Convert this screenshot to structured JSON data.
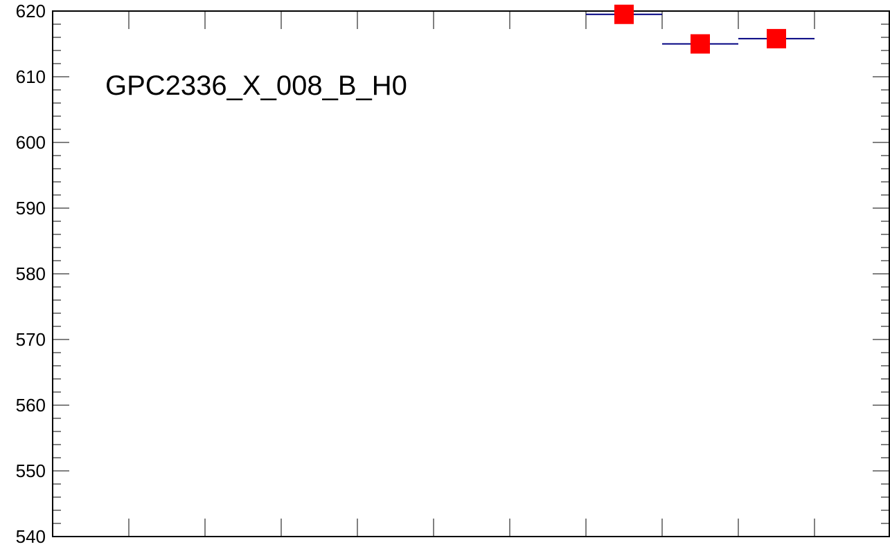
{
  "chart_data": {
    "type": "scatter",
    "title": "",
    "xlabel": "",
    "ylabel": "",
    "annotation": "GPC2336_X_008_B_H0",
    "ylim": [
      540,
      620
    ],
    "yticks": [
      "620",
      "610",
      "600",
      "590",
      "580",
      "570",
      "560",
      "550",
      "540"
    ],
    "x_bins": 11,
    "points": [
      {
        "bin": 8,
        "y": 619.5
      },
      {
        "bin": 9,
        "y": 615.0
      },
      {
        "bin": 10,
        "y": 615.8
      }
    ],
    "grid": false,
    "legend": "none",
    "colors": {
      "marker": "#ff0000",
      "bin_line": "#000080",
      "axis": "#000000"
    }
  }
}
